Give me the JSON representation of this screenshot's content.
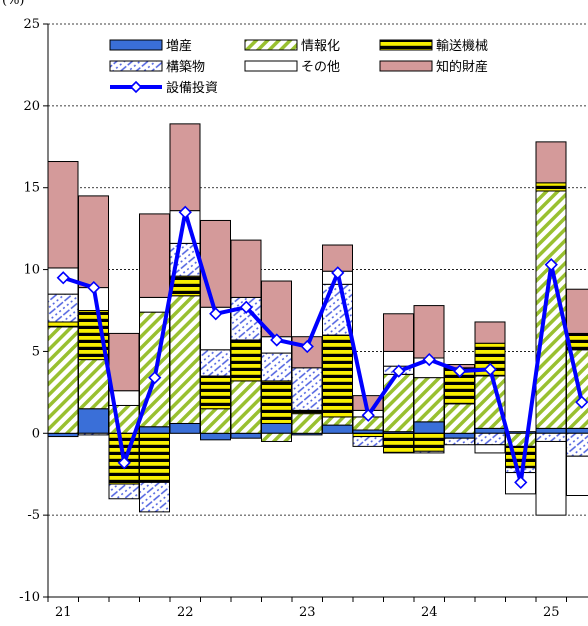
{
  "chart_data": {
    "type": "bar",
    "stacked": true,
    "title": "",
    "ylabel": "(%)",
    "xlabel": "",
    "ylim": [
      -10,
      25
    ],
    "yticks": [
      25,
      20,
      15,
      10,
      5,
      0,
      -5,
      -10
    ],
    "grid": "horizontal-dotted",
    "legend_position": "top",
    "x_tick_labels": [
      {
        "label": "21",
        "at": 0
      },
      {
        "label": "22",
        "at": 4
      },
      {
        "label": "23",
        "at": 8
      },
      {
        "label": "24",
        "at": 12
      },
      {
        "label": "25",
        "at": 16
      }
    ],
    "categories": [
      "21Q1",
      "21Q2",
      "21Q3",
      "21Q4",
      "22Q1",
      "22Q2",
      "22Q3",
      "22Q4",
      "23Q1",
      "23Q2",
      "23Q3",
      "23Q4",
      "24Q1",
      "24Q2",
      "24Q3",
      "24Q4",
      "25Q1",
      "25Q2"
    ],
    "series": [
      {
        "name": "増産",
        "key": "zousan",
        "color": "#3a6fd8",
        "values": [
          -0.2,
          1.5,
          0.0,
          0.4,
          0.6,
          -0.4,
          -0.3,
          0.6,
          -0.1,
          0.5,
          0.2,
          0.1,
          0.7,
          -0.3,
          0.3,
          0.1,
          0.3,
          0.3
        ]
      },
      {
        "name": "情報化",
        "key": "jouhouka",
        "color": "#99c030",
        "values": [
          6.5,
          3.0,
          1.7,
          7.0,
          7.8,
          1.5,
          3.2,
          -0.5,
          1.2,
          0.5,
          0.8,
          3.5,
          2.7,
          1.8,
          3.2,
          -0.8,
          14.5,
          4.8
        ]
      },
      {
        "name": "輸送機械",
        "key": "yusou",
        "color": "#f8ef00",
        "values": [
          0.3,
          3.0,
          -3.1,
          -3.0,
          1.2,
          2.0,
          2.5,
          2.6,
          0.2,
          5.0,
          -0.2,
          -1.2,
          -1.1,
          2.2,
          2.0,
          -1.3,
          0.5,
          1.0
        ]
      },
      {
        "name": "構築物",
        "key": "kouchiku",
        "color": "#4c5fe0",
        "values": [
          1.7,
          -0.1,
          -0.9,
          -1.8,
          2.0,
          1.6,
          2.6,
          1.7,
          2.6,
          3.1,
          -0.6,
          0.5,
          -0.1,
          -0.4,
          -0.7,
          -0.3,
          -0.5,
          -1.4
        ]
      },
      {
        "name": "その他",
        "key": "sonota",
        "color": "#ffffff",
        "values": [
          1.6,
          1.4,
          0.9,
          0.9,
          2.0,
          2.6,
          0.0,
          1.0,
          0.0,
          0.8,
          0.4,
          0.9,
          1.2,
          0.0,
          -0.5,
          -1.3,
          -4.5,
          -2.4
        ]
      },
      {
        "name": "知的財産",
        "key": "chiteki",
        "color": "#d49a9a",
        "values": [
          6.5,
          5.6,
          3.5,
          5.1,
          5.3,
          5.3,
          3.5,
          3.4,
          1.9,
          1.6,
          0.9,
          2.3,
          3.2,
          0.2,
          1.3,
          0.0,
          2.5,
          2.7
        ]
      },
      {
        "name": "設備投資",
        "key": "total",
        "type": "line",
        "color": "#0000ff",
        "values": [
          9.5,
          8.9,
          -1.8,
          3.4,
          13.5,
          7.3,
          7.7,
          5.7,
          5.3,
          9.8,
          1.1,
          3.8,
          4.5,
          3.8,
          3.9,
          -3.0,
          10.3,
          1.9
        ]
      }
    ]
  }
}
